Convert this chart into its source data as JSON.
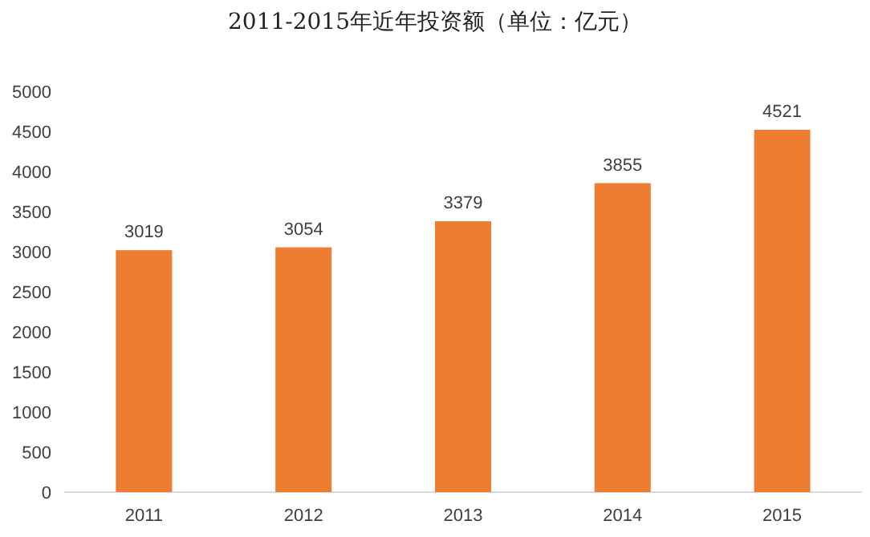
{
  "chart_data": {
    "type": "bar",
    "title": "2011-2015年近年投资额（单位：亿元）",
    "categories": [
      "2011",
      "2012",
      "2013",
      "2014",
      "2015"
    ],
    "values": [
      3019,
      3054,
      3379,
      3855,
      4521
    ],
    "color": "#ed7d31",
    "ylim": [
      0,
      5000
    ],
    "yticks": [
      0,
      500,
      1000,
      1500,
      2000,
      2500,
      3000,
      3500,
      4000,
      4500,
      5000
    ],
    "data_labels": true
  }
}
